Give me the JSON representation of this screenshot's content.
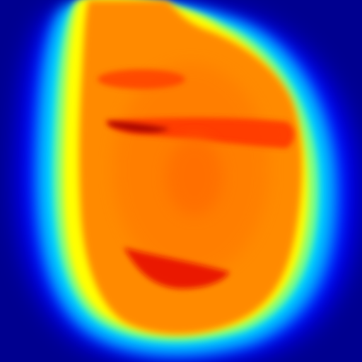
{
  "image": {
    "kind": "false-color heatmap of a face",
    "colormap": [
      "#00008f",
      "#0000ff",
      "#0080ff",
      "#00e0ff",
      "#80ff80",
      "#ffff00",
      "#ff8c00",
      "#ff4000",
      "#e00000",
      "#800000"
    ],
    "background_color": "#00008f",
    "face_color": "#ff8a00"
  }
}
